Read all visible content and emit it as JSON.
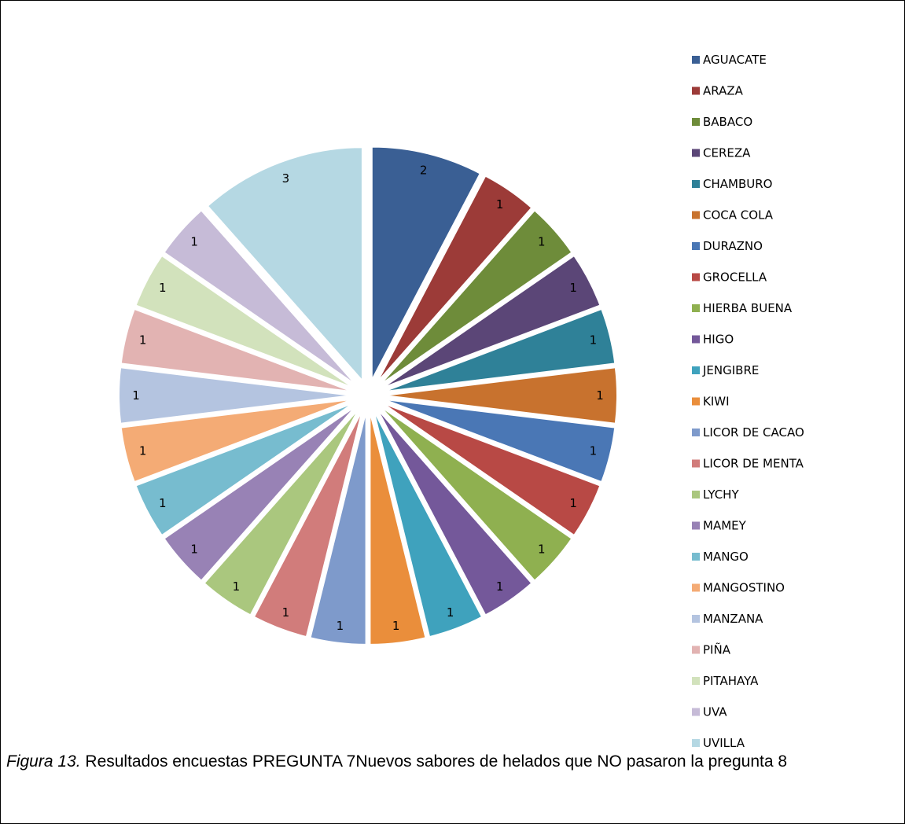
{
  "chart_data": {
    "type": "pie",
    "categories": [
      "AGUACATE",
      "ARAZA",
      "BABACO",
      "CEREZA",
      "CHAMBURO",
      "COCA COLA",
      "DURAZNO",
      "GROCELLA",
      "HIERBA BUENA",
      "HIGO",
      "JENGIBRE",
      "KIWI",
      "LICOR DE CACAO",
      "LICOR DE MENTA",
      "LYCHY",
      "MAMEY",
      "MANGO",
      "MANGOSTINO",
      "MANZANA",
      "PIÑA",
      "PITAHAYA",
      "UVA",
      "UVILLA"
    ],
    "values": [
      2,
      1,
      1,
      1,
      1,
      1,
      1,
      1,
      1,
      1,
      1,
      1,
      1,
      1,
      1,
      1,
      1,
      1,
      1,
      1,
      1,
      1,
      3
    ],
    "colors": [
      "#3a5f94",
      "#9c3b38",
      "#6e8c3a",
      "#5b4677",
      "#2f8198",
      "#c8722e",
      "#4a77b5",
      "#b84945",
      "#8fb050",
      "#74589a",
      "#3fa2bd",
      "#ea8e3b",
      "#7e9acb",
      "#d17c7b",
      "#aac77e",
      "#9882b5",
      "#77bccf",
      "#f4ab75",
      "#b4c4e0",
      "#e2b3b2",
      "#d2e2bc",
      "#c6bbd7",
      "#b5d8e3"
    ],
    "legend": "right",
    "explode": true
  },
  "caption": {
    "figure_label": "Figura 13.",
    "text": " Resultados encuestas PREGUNTA 7Nuevos sabores de helados que NO pasaron la pregunta 8"
  }
}
